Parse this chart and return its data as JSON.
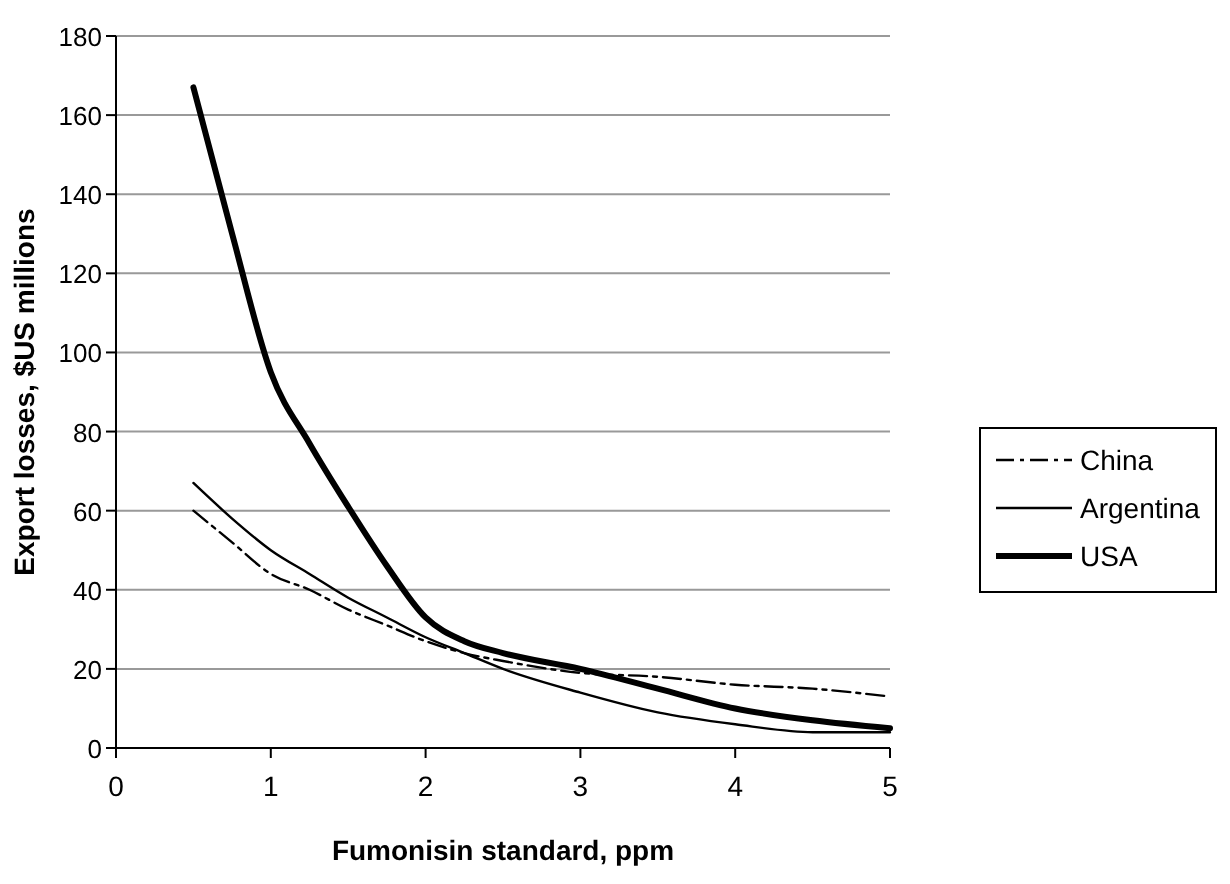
{
  "chart_data": {
    "type": "line",
    "xlabel": "Fumonisin standard, ppm",
    "ylabel": "Export losses, $US millions",
    "x": [
      0.5,
      0.75,
      1,
      1.25,
      1.5,
      1.75,
      2,
      2.25,
      2.5,
      3,
      3.5,
      4,
      4.5,
      5
    ],
    "series": [
      {
        "name": "China",
        "color": "#000000",
        "line_style": "dashed",
        "values": [
          60,
          52,
          44,
          40,
          35,
          31,
          27,
          24,
          22,
          19,
          18,
          16,
          15,
          13
        ]
      },
      {
        "name": "Argentina",
        "color": "#000000",
        "line_style": "solid",
        "values": [
          67,
          58,
          50,
          44,
          38,
          33,
          28,
          24,
          20,
          14,
          9,
          6,
          4,
          4
        ]
      },
      {
        "name": "USA",
        "color": "#000000",
        "line_style": "solid",
        "values": [
          167,
          130,
          95,
          77,
          61,
          46,
          33,
          27,
          24,
          20,
          15,
          10,
          7,
          5
        ]
      }
    ],
    "xlim": [
      0,
      5
    ],
    "xticks": [
      0,
      1,
      2,
      3,
      4,
      5
    ],
    "ylim": [
      0,
      180
    ],
    "yticks": [
      0,
      20,
      40,
      60,
      80,
      100,
      120,
      140,
      160,
      180
    ],
    "grid": "y",
    "legend": "right"
  }
}
